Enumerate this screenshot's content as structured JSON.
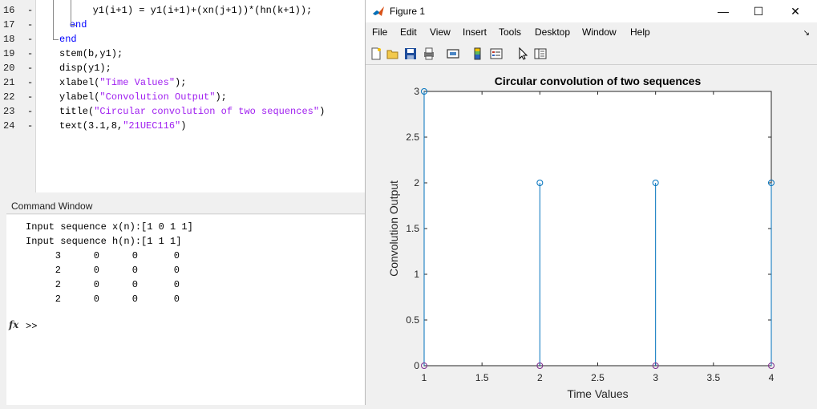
{
  "editor": {
    "lines": [
      {
        "num": "16",
        "code": [
          {
            "t": "        y1(i+1) = y1(i+1)+(xn(j+1))*(hn(k+1));",
            "c": ""
          }
        ]
      },
      {
        "num": "17",
        "code": [
          {
            "t": "    end",
            "c": "kw"
          }
        ]
      },
      {
        "num": "18",
        "code": [
          {
            "t": "end",
            "c": "kw"
          }
        ]
      },
      {
        "num": "19",
        "code": [
          {
            "t": "stem(b,y1);",
            "c": ""
          }
        ]
      },
      {
        "num": "20",
        "code": [
          {
            "t": "disp(y1);",
            "c": ""
          }
        ]
      },
      {
        "num": "21",
        "code": [
          {
            "t": "xlabel(",
            "c": ""
          },
          {
            "t": "\"Time Values\"",
            "c": "str"
          },
          {
            "t": ");",
            "c": ""
          }
        ]
      },
      {
        "num": "22",
        "code": [
          {
            "t": "ylabel(",
            "c": ""
          },
          {
            "t": "\"Convolution Output\"",
            "c": "str"
          },
          {
            "t": ");",
            "c": ""
          }
        ]
      },
      {
        "num": "23",
        "code": [
          {
            "t": "title(",
            "c": ""
          },
          {
            "t": "\"Circular convolution of two sequences\"",
            "c": "str"
          },
          {
            "t": ")",
            "c": ""
          }
        ]
      },
      {
        "num": "24",
        "code": [
          {
            "t": "text(3.1,8,",
            "c": ""
          },
          {
            "t": "\"21UEC116\"",
            "c": "str"
          },
          {
            "t": ")",
            "c": ""
          }
        ]
      }
    ]
  },
  "command_window": {
    "title": "Command Window",
    "input_x": "Input sequence x(n):[1 0 1 1]",
    "input_h": "Input sequence h(n):[1 1 1]",
    "matrix": [
      [
        "3",
        "0",
        "0",
        "0"
      ],
      [
        "2",
        "0",
        "0",
        "0"
      ],
      [
        "2",
        "0",
        "0",
        "0"
      ],
      [
        "2",
        "0",
        "0",
        "0"
      ]
    ],
    "prompt": ">>",
    "fx": "fx"
  },
  "figure": {
    "title": "Figure 1",
    "menu": [
      "File",
      "Edit",
      "View",
      "Insert",
      "Tools",
      "Desktop",
      "Window",
      "Help"
    ],
    "win_buttons": {
      "minimize": "—",
      "maximize": "☐",
      "close": "✕"
    }
  },
  "chart_data": {
    "type": "stem",
    "title": "Circular convolution of two sequences",
    "xlabel": "Time Values",
    "ylabel": "Convolution Output",
    "xlim": [
      1,
      4
    ],
    "ylim": [
      0,
      3
    ],
    "xticks": [
      "1",
      "1.5",
      "2",
      "2.5",
      "3",
      "3.5",
      "4"
    ],
    "yticks": [
      "0",
      "0.5",
      "1",
      "1.5",
      "2",
      "2.5",
      "3"
    ],
    "x": [
      1,
      2,
      3,
      4
    ],
    "series": [
      {
        "values": [
          3,
          2,
          2,
          2
        ],
        "color": "#0072bd"
      },
      {
        "values": [
          0,
          0,
          0,
          0
        ],
        "color": "#7e2f8e"
      }
    ]
  },
  "colors": {
    "string": "#a020f0",
    "keyword": "#0000ff",
    "stem_blue": "#0072bd",
    "stem_purple": "#7e2f8e"
  }
}
